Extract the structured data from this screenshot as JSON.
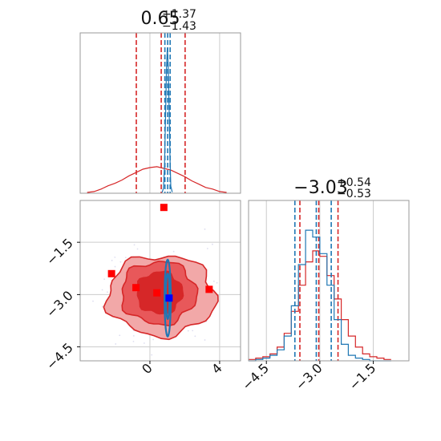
{
  "chart_data": [
    {
      "type": "line",
      "panel": "marginal-x",
      "title": {
        "main": "0.65",
        "plus": "+1.37",
        "minus": "−1.43"
      },
      "xlim": [
        -4,
        5.2
      ],
      "grid": true,
      "series": [
        {
          "color": "#d62728",
          "x": [
            -3.6,
            -3.2,
            -2.8,
            -2.4,
            -2.0,
            -1.6,
            -1.2,
            -0.8,
            -0.4,
            0.0,
            0.4,
            0.8,
            1.2,
            1.6,
            2.0,
            2.4,
            2.8,
            3.2,
            3.6,
            4.0,
            4.4
          ],
          "y": [
            0.01,
            0.02,
            0.05,
            0.09,
            0.12,
            0.16,
            0.21,
            0.25,
            0.29,
            0.31,
            0.32,
            0.3,
            0.28,
            0.24,
            0.2,
            0.15,
            0.11,
            0.07,
            0.05,
            0.02,
            0.01
          ],
          "quantiles": [
            -0.78,
            0.65,
            2.02
          ]
        },
        {
          "color": "#1f77b4",
          "x": [
            0.7,
            0.78,
            0.84,
            0.9,
            0.95,
            1.0,
            1.05,
            1.1,
            1.15,
            1.2,
            1.28
          ],
          "y": [
            0.02,
            0.15,
            0.8,
            2.2,
            3.5,
            4.1,
            3.6,
            2.4,
            1.0,
            0.2,
            0.03
          ],
          "quantiles": [
            0.86,
            1.02,
            1.16
          ]
        }
      ]
    },
    {
      "type": "line",
      "panel": "marginal-y",
      "title": {
        "main": "−3.03",
        "plus": "+0.54",
        "minus": "−0.53"
      },
      "xlim": [
        -5.0,
        -0.5
      ],
      "xticks": [
        "−4.5",
        "−3.0",
        "−1.5"
      ],
      "xtick_values": [
        -4.5,
        -3.0,
        -1.5
      ],
      "grid": true,
      "series": [
        {
          "color": "#d62728",
          "x": [
            -4.9,
            -4.7,
            -4.5,
            -4.3,
            -4.1,
            -3.9,
            -3.7,
            -3.5,
            -3.3,
            -3.1,
            -2.9,
            -2.7,
            -2.5,
            -2.3,
            -2.1,
            -1.9,
            -1.7,
            -1.5,
            -1.3,
            -1.1
          ],
          "y": [
            0.01,
            0.02,
            0.03,
            0.05,
            0.1,
            0.2,
            0.36,
            0.55,
            0.72,
            0.8,
            0.76,
            0.62,
            0.45,
            0.3,
            0.18,
            0.1,
            0.05,
            0.03,
            0.02,
            0.01
          ],
          "quantiles": [
            -3.56,
            -3.03,
            -2.49
          ]
        },
        {
          "color": "#1f77b4",
          "x": [
            -4.9,
            -4.7,
            -4.5,
            -4.3,
            -4.1,
            -3.9,
            -3.7,
            -3.5,
            -3.3,
            -3.1,
            -2.9,
            -2.7,
            -2.5,
            -2.3,
            -2.1,
            -1.9,
            -1.7,
            -1.5,
            -1.3,
            -1.1
          ],
          "y": [
            0.0,
            0.01,
            0.02,
            0.04,
            0.08,
            0.18,
            0.4,
            0.7,
            0.95,
            0.9,
            0.78,
            0.55,
            0.3,
            0.12,
            0.04,
            0.02,
            0.01,
            0.0,
            0.0,
            0.0
          ],
          "quantiles": [
            -3.7,
            -3.1,
            -2.68
          ]
        }
      ]
    },
    {
      "type": "scatter",
      "panel": "joint",
      "xlim": [
        -4,
        5.2
      ],
      "ylim": [
        -4.9,
        -0.3
      ],
      "xticks": [
        "0",
        "4"
      ],
      "xtick_values": [
        0,
        4
      ],
      "yticks": [
        "−1.5",
        "−3.0",
        "−4.5"
      ],
      "ytick_values": [
        -1.5,
        -3.0,
        -4.5
      ],
      "grid": true,
      "contours": [
        {
          "color": "#d62728",
          "fill": "#f2a8a8",
          "cx": 0.65,
          "cy": -3.03,
          "rx": 3.1,
          "ry": 1.15
        },
        {
          "color": "#d62728",
          "fill": "#e8585a",
          "cx": 0.5,
          "cy": -2.95,
          "rx": 2.15,
          "ry": 0.9
        },
        {
          "color": "#d62728",
          "fill": "#d62728",
          "cx": 0.55,
          "cy": -2.95,
          "rx": 1.3,
          "ry": 0.6
        },
        {
          "color": "#1f77b4",
          "fill": "none",
          "cx": 1.02,
          "cy": -3.1,
          "rx": 0.18,
          "ry": 1.1
        },
        {
          "color": "#1f77b4",
          "fill": "none",
          "cx": 1.02,
          "cy": -3.05,
          "rx": 0.1,
          "ry": 0.65
        }
      ],
      "markers": [
        {
          "color": "#ff0000",
          "x": 0.8,
          "y": -0.5
        },
        {
          "color": "#ff0000",
          "x": -2.2,
          "y": -2.4
        },
        {
          "color": "#ff0000",
          "x": -0.8,
          "y": -2.8
        },
        {
          "color": "#ff0000",
          "x": 0.4,
          "y": -2.95
        },
        {
          "color": "#ff0000",
          "x": 3.4,
          "y": -2.85
        },
        {
          "color": "#0000ff",
          "x": 1.1,
          "y": -3.1
        }
      ]
    }
  ],
  "colors": {
    "red": "#d62728",
    "blue": "#1f77b4",
    "grid": "#cccccc",
    "frame": "#999999"
  }
}
